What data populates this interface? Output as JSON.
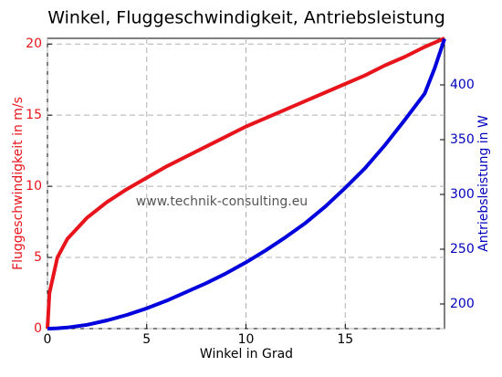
{
  "chart_data": {
    "type": "line",
    "title": "Winkel, Fluggeschwindigkeit, Antriebsleistung",
    "x_label": "Winkel in Grad",
    "y_label": "Fluggeschwindigkeit in m/s",
    "y2_label": "Antriebsleistung in W",
    "annotation": "www.technik-consulting.eu",
    "x": [
      0,
      0.1,
      0.5,
      1,
      2,
      3,
      4,
      5,
      6,
      7,
      8,
      9,
      10,
      11,
      12,
      13,
      14,
      15,
      16,
      17,
      18,
      19,
      19.5,
      20
    ],
    "series": [
      {
        "name": "Fluggeschwindigkeit",
        "color": "#e8141b",
        "values": [
          0,
          2.5,
          5,
          6.3,
          7.8,
          8.9,
          9.8,
          10.6,
          11.4,
          12.1,
          12.8,
          13.5,
          14.2,
          14.8,
          15.4,
          16.0,
          16.6,
          17.2,
          17.8,
          18.5,
          19.1,
          19.8,
          20.1,
          20.4
        ]
      },
      {
        "name": "Antriebsleistung",
        "color": "#0000dd",
        "axis": "y2",
        "values": [
          177.5,
          177.5,
          177.8,
          178.5,
          181,
          185,
          190,
          196,
          203,
          211,
          219,
          228,
          238,
          249,
          261,
          274,
          289,
          306,
          324,
          345,
          368,
          392,
          415,
          442
        ]
      }
    ],
    "xlim": [
      0,
      20
    ],
    "xticks": [
      0,
      5,
      10,
      15
    ],
    "ylim": [
      0,
      20.4
    ],
    "yticks": [
      0,
      5,
      10,
      15,
      20
    ],
    "y2lim": [
      177.5,
      442.5
    ],
    "y2ticks": [
      200,
      250,
      300,
      350,
      400
    ],
    "grid": true
  }
}
